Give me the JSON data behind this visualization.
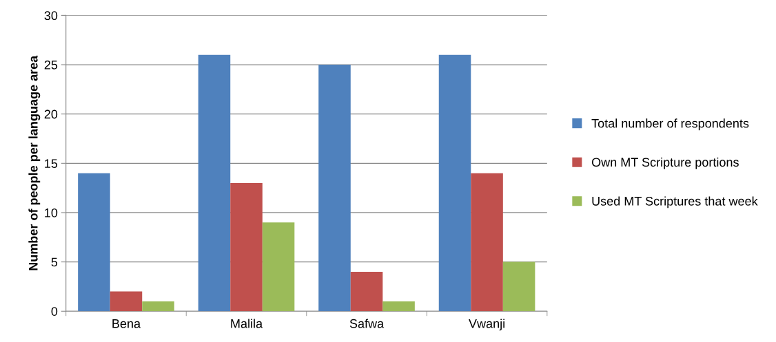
{
  "chart_data": {
    "type": "bar",
    "ylabel": "Number of people per language area",
    "categories": [
      "Bena",
      "Malila",
      "Safwa",
      "Vwanji"
    ],
    "series": [
      {
        "name": "Total number of respondents",
        "color": "#4f81bd",
        "values": [
          14,
          26,
          25,
          26
        ]
      },
      {
        "name": "Own MT Scripture portions",
        "color": "#c0504d",
        "values": [
          2,
          13,
          4,
          14
        ]
      },
      {
        "name": "Used MT Scriptures that week",
        "color": "#9bbb59",
        "values": [
          1,
          9,
          1,
          5
        ]
      }
    ],
    "ylim": [
      0,
      30
    ],
    "yticks": [
      0,
      5,
      10,
      15,
      20,
      25,
      30
    ],
    "grid": "y",
    "legend": "right"
  }
}
